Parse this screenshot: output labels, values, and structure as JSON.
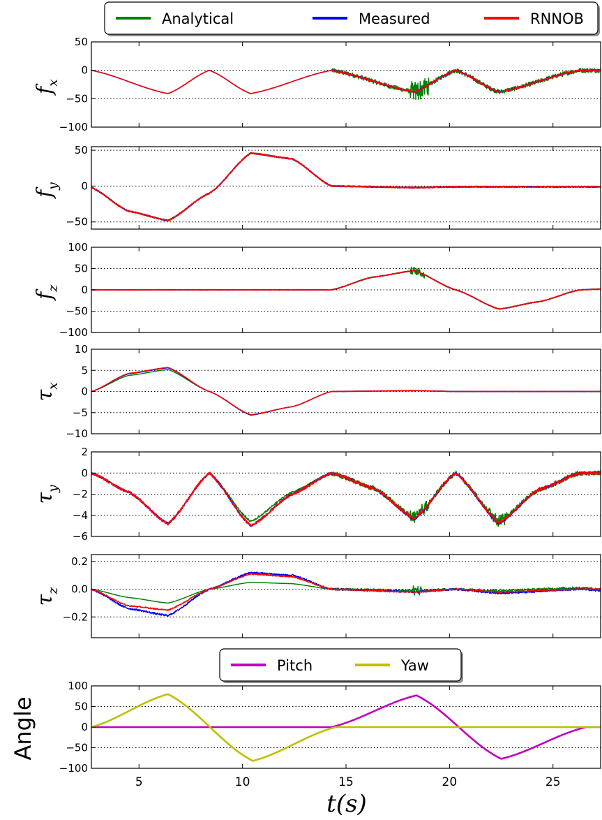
{
  "chart_data": [
    {
      "type": "line",
      "ylabel": "f",
      "ylabel_sub": "x",
      "ylim": [
        -100,
        50
      ],
      "yticks": [
        50,
        0,
        -50,
        -100
      ],
      "ytick_labels": [
        "50",
        "0",
        "−50",
        "−100"
      ],
      "xlim": [
        2.7,
        27.3
      ],
      "grid": true,
      "legend": {
        "placement": "top",
        "entries": [
          {
            "name": "Analytical",
            "color": "#008000"
          },
          {
            "name": "Measured",
            "color": "#0000ff"
          },
          {
            "name": "RNNOB",
            "color": "#ff0000"
          }
        ]
      },
      "series": [
        {
          "name": "Analytical",
          "color": "#008000",
          "x": [
            2.7,
            6.4,
            8.4,
            10.4,
            14.3,
            18.3,
            20.3,
            22.4,
            26.3,
            27.3
          ],
          "y": [
            0,
            -41,
            0,
            -41,
            0,
            -38,
            0,
            -38,
            0,
            0
          ],
          "noise": [
            [
              14.3,
              27.3,
              4
            ],
            [
              18.1,
              19.0,
              16
            ]
          ]
        },
        {
          "name": "Measured",
          "color": "#0000ff",
          "x": [
            2.7,
            6.4,
            8.4,
            10.4,
            14.3,
            18.3,
            20.3,
            22.4,
            26.3,
            27.3
          ],
          "y": [
            0,
            -41,
            0,
            -41,
            0,
            -38,
            0,
            -38,
            0,
            0
          ],
          "noise": [
            [
              14.3,
              27.3,
              1.2
            ]
          ]
        },
        {
          "name": "RNNOB",
          "color": "#ff0000",
          "x": [
            2.7,
            6.4,
            8.4,
            10.4,
            14.3,
            18.3,
            20.3,
            22.4,
            26.3,
            27.3
          ],
          "y": [
            0,
            -41,
            0,
            -41,
            0,
            -38,
            0,
            -38,
            0,
            0
          ],
          "noise": [
            [
              14.3,
              27.3,
              1.5
            ]
          ]
        }
      ]
    },
    {
      "type": "line",
      "ylabel": "f",
      "ylabel_sub": "y",
      "ylim": [
        -60,
        55
      ],
      "yticks": [
        50,
        0,
        -50
      ],
      "ytick_labels": [
        "50",
        "0",
        "−50"
      ],
      "xlim": [
        2.7,
        27.3
      ],
      "grid": true,
      "series": [
        {
          "name": "Analytical",
          "color": "#008000",
          "x": [
            2.7,
            4.5,
            6.4,
            8.4,
            10.4,
            12.4,
            14.3,
            18.3,
            20.3,
            22.4,
            27.3
          ],
          "y": [
            -2,
            -35,
            -48,
            -10,
            46,
            38,
            0,
            -2,
            -1,
            -1,
            -1
          ],
          "noise": [
            [
              2.7,
              27.3,
              0.8
            ]
          ]
        },
        {
          "name": "Measured",
          "color": "#0000ff",
          "x": [
            2.7,
            4.5,
            6.4,
            8.4,
            10.4,
            12.4,
            14.3,
            18.3,
            20.3,
            22.4,
            27.3
          ],
          "y": [
            -2,
            -35,
            -48,
            -10,
            46,
            38,
            0,
            -2,
            -1,
            -1,
            -1
          ],
          "noise": [
            [
              2.7,
              27.3,
              0.8
            ]
          ]
        },
        {
          "name": "RNNOB",
          "color": "#ff0000",
          "x": [
            2.7,
            4.5,
            6.4,
            8.4,
            10.4,
            12.4,
            14.3,
            18.3,
            20.3,
            22.4,
            27.3
          ],
          "y": [
            -2,
            -35,
            -48,
            -10,
            46,
            38,
            0,
            -2,
            -1,
            -1,
            -1
          ],
          "noise": [
            [
              2.7,
              27.3,
              1.0
            ]
          ]
        }
      ]
    },
    {
      "type": "line",
      "ylabel": "f",
      "ylabel_sub": "z",
      "ylim": [
        -100,
        100
      ],
      "yticks": [
        100,
        50,
        0,
        -50,
        -100
      ],
      "ytick_labels": [
        "100",
        "50",
        "0",
        "−50",
        "−100"
      ],
      "xlim": [
        2.7,
        27.3
      ],
      "grid": true,
      "series": [
        {
          "name": "Analytical",
          "color": "#008000",
          "x": [
            2.7,
            14.3,
            16.3,
            18.3,
            20.3,
            22.4,
            24.3,
            26.3,
            27.3
          ],
          "y": [
            0,
            0,
            30,
            45,
            0,
            -45,
            -28,
            0,
            2
          ],
          "noise": [
            [
              14.3,
              27.3,
              1.0
            ],
            [
              18.1,
              18.8,
              9
            ]
          ]
        },
        {
          "name": "Measured",
          "color": "#0000ff",
          "x": [
            2.7,
            14.3,
            16.3,
            18.3,
            20.3,
            22.4,
            24.3,
            26.3,
            27.3
          ],
          "y": [
            0,
            0,
            30,
            45,
            0,
            -45,
            -28,
            0,
            2
          ],
          "noise": [
            [
              2.7,
              27.3,
              0.6
            ]
          ]
        },
        {
          "name": "RNNOB",
          "color": "#ff0000",
          "x": [
            2.7,
            14.3,
            16.3,
            18.3,
            20.3,
            22.4,
            24.3,
            26.3,
            27.3
          ],
          "y": [
            0,
            0,
            30,
            45,
            0,
            -45,
            -28,
            0,
            2
          ],
          "noise": [
            [
              2.7,
              27.3,
              0.8
            ]
          ]
        }
      ]
    },
    {
      "type": "line",
      "ylabel": "τ",
      "ylabel_sub": "x",
      "ylim": [
        -10,
        10
      ],
      "yticks": [
        10,
        5,
        0,
        -5,
        -10
      ],
      "ytick_labels": [
        "10",
        "5",
        "0",
        "−5",
        "−10"
      ],
      "xlim": [
        2.7,
        27.3
      ],
      "grid": true,
      "series": [
        {
          "name": "Analytical",
          "color": "#008000",
          "x": [
            2.7,
            4.5,
            6.4,
            8.4,
            10.4,
            12.4,
            14.3,
            18.3,
            20.3,
            27.3
          ],
          "y": [
            0,
            3.8,
            5.2,
            0,
            -5.6,
            -3.6,
            0,
            0.2,
            0,
            0
          ],
          "noise": [
            [
              14.3,
              27.3,
              0.05
            ]
          ]
        },
        {
          "name": "Measured",
          "color": "#0000ff",
          "x": [
            2.7,
            4.5,
            6.4,
            8.4,
            10.4,
            12.4,
            14.3,
            18.3,
            20.3,
            27.3
          ],
          "y": [
            0,
            4.2,
            5.6,
            0,
            -5.6,
            -3.6,
            0,
            0.2,
            0,
            0
          ],
          "noise": [
            [
              14.3,
              27.3,
              0.05
            ]
          ]
        },
        {
          "name": "RNNOB",
          "color": "#ff0000",
          "x": [
            2.7,
            4.5,
            6.4,
            8.4,
            10.4,
            12.4,
            14.3,
            18.3,
            20.3,
            27.3
          ],
          "y": [
            0,
            4.3,
            5.7,
            0,
            -5.5,
            -3.6,
            0,
            0.2,
            0,
            0
          ],
          "noise": [
            [
              14.3,
              27.3,
              0.05
            ]
          ]
        }
      ]
    },
    {
      "type": "line",
      "ylabel": "τ",
      "ylabel_sub": "y",
      "ylim": [
        -6,
        2
      ],
      "yticks": [
        2,
        0,
        -2,
        -4,
        -6
      ],
      "ytick_labels": [
        "2",
        "0",
        "−2",
        "−4",
        "−6"
      ],
      "xlim": [
        2.7,
        27.3
      ],
      "grid": true,
      "series": [
        {
          "name": "Analytical",
          "color": "#008000",
          "x": [
            2.7,
            4.5,
            6.4,
            8.4,
            10.4,
            12.4,
            14.3,
            16.3,
            18.3,
            20.3,
            22.4,
            24.3,
            26.3,
            27.3
          ],
          "y": [
            0,
            -1.8,
            -4.8,
            0,
            -4.6,
            -1.8,
            0,
            -1.4,
            -4.2,
            0,
            -4.6,
            -1.6,
            0,
            0
          ],
          "noise": [
            [
              2.7,
              14.3,
              0.08
            ],
            [
              14.3,
              27.3,
              0.22
            ],
            [
              18.1,
              19.0,
              0.5
            ],
            [
              21.9,
              22.8,
              0.5
            ]
          ]
        },
        {
          "name": "Measured",
          "color": "#0000ff",
          "x": [
            2.7,
            4.5,
            6.4,
            8.4,
            10.4,
            12.4,
            14.3,
            16.3,
            18.3,
            20.3,
            22.4,
            24.3,
            26.3,
            27.3
          ],
          "y": [
            0,
            -1.8,
            -4.8,
            0,
            -5.0,
            -2.0,
            0,
            -1.4,
            -4.4,
            0,
            -4.8,
            -1.6,
            0,
            0
          ],
          "noise": [
            [
              2.7,
              27.3,
              0.1
            ]
          ]
        },
        {
          "name": "RNNOB",
          "color": "#ff0000",
          "x": [
            2.7,
            4.5,
            6.4,
            8.4,
            10.4,
            12.4,
            14.3,
            16.3,
            18.3,
            20.3,
            22.4,
            24.3,
            26.3,
            27.3
          ],
          "y": [
            0,
            -1.8,
            -4.8,
            0,
            -5.0,
            -2.0,
            0,
            -1.4,
            -4.3,
            0,
            -4.7,
            -1.6,
            0,
            0
          ],
          "noise": [
            [
              2.7,
              27.3,
              0.14
            ]
          ]
        }
      ]
    },
    {
      "type": "line",
      "ylabel": "τ",
      "ylabel_sub": "z",
      "ylim": [
        -0.35,
        0.25
      ],
      "yticks": [
        0.2,
        0.0,
        -0.2
      ],
      "ytick_labels": [
        "0.2",
        "0.0",
        "−0.2"
      ],
      "xlim": [
        2.7,
        27.3
      ],
      "grid": true,
      "series": [
        {
          "name": "Analytical",
          "color": "#008000",
          "x": [
            2.7,
            4.5,
            6.4,
            8.4,
            10.4,
            12.4,
            14.3,
            18.3,
            20.3,
            22.4,
            26.3,
            27.3
          ],
          "y": [
            0,
            -0.06,
            -0.1,
            0,
            0.05,
            0.04,
            0,
            -0.01,
            0,
            -0.01,
            0.01,
            0
          ],
          "noise": [
            [
              14.3,
              27.3,
              0.008
            ],
            [
              18.2,
              18.7,
              0.03
            ]
          ]
        },
        {
          "name": "Measured",
          "color": "#0000ff",
          "x": [
            2.7,
            4.5,
            6.4,
            8.4,
            10.4,
            12.4,
            14.3,
            18.3,
            20.3,
            22.4,
            26.3,
            27.3
          ],
          "y": [
            0,
            -0.14,
            -0.19,
            0,
            0.12,
            0.1,
            0,
            -0.02,
            0,
            -0.03,
            0,
            -0.01
          ],
          "noise": [
            [
              2.7,
              27.3,
              0.006
            ]
          ]
        },
        {
          "name": "RNNOB",
          "color": "#ff0000",
          "x": [
            2.7,
            4.5,
            6.4,
            8.4,
            10.4,
            12.4,
            14.3,
            18.3,
            20.3,
            22.4,
            26.3,
            27.3
          ],
          "y": [
            0,
            -0.12,
            -0.15,
            0,
            0.11,
            0.09,
            0,
            -0.02,
            0,
            -0.02,
            0,
            0
          ],
          "noise": [
            [
              2.7,
              27.3,
              0.004
            ]
          ]
        }
      ]
    },
    {
      "type": "line",
      "ylabel": "Angle",
      "ylim": [
        -100,
        100
      ],
      "yticks": [
        100,
        50,
        0,
        -50,
        -100
      ],
      "ytick_labels": [
        "100",
        "50",
        "0",
        "−50",
        "−100"
      ],
      "xlim": [
        2.7,
        27.3
      ],
      "xticks": [
        5,
        10,
        15,
        20,
        25
      ],
      "xtick_labels": [
        "5",
        "10",
        "15",
        "20",
        "25"
      ],
      "xlabel": "t(s)",
      "grid": true,
      "legend": {
        "placement": "top",
        "entries": [
          {
            "name": "Pitch",
            "color": "#bf00bf"
          },
          {
            "name": "Yaw",
            "color": "#bfbf00"
          }
        ]
      },
      "series": [
        {
          "name": "Pitch",
          "color": "#bf00bf",
          "x": [
            2.7,
            14.3,
            18.4,
            22.5,
            26.6,
            27.3
          ],
          "y": [
            0,
            0,
            77,
            -77,
            0,
            0
          ]
        },
        {
          "name": "Yaw",
          "color": "#bfbf00",
          "x": [
            2.7,
            6.4,
            10.5,
            14.5,
            27.3
          ],
          "y": [
            0,
            80,
            -82,
            0,
            0
          ]
        }
      ]
    }
  ]
}
